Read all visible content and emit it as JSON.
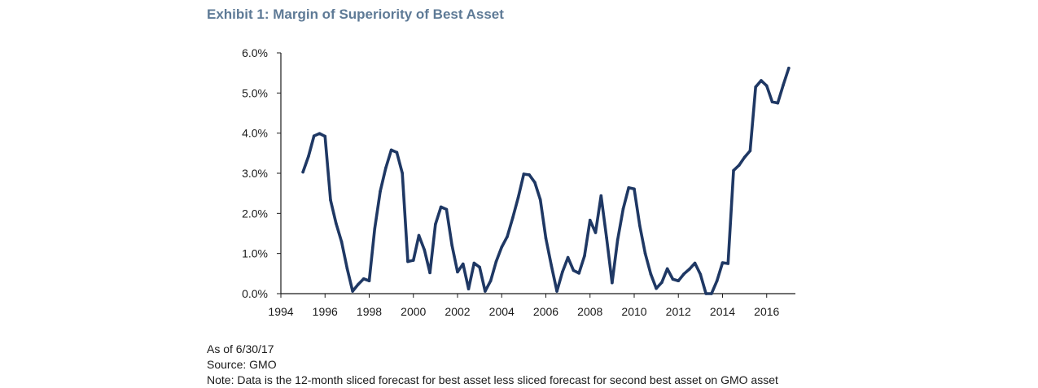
{
  "exhibit": {
    "title": "Exhibit 1: Margin of Superiority of Best Asset"
  },
  "footnotes": {
    "as_of": "As of 6/30/17",
    "source": "Source: GMO",
    "note": "Note: Data is the 12-month sliced forecast for best asset less sliced forecast for second best asset on GMO asset"
  },
  "colors": {
    "title": "#5e7a96",
    "line": "#1f3864",
    "axis": "#1a1a1a"
  },
  "chart_data": {
    "type": "line",
    "title": "Exhibit 1: Margin of Superiority of Best Asset",
    "xlabel": "",
    "ylabel": "",
    "xlim": [
      1994,
      2017.3
    ],
    "ylim": [
      0,
      6
    ],
    "x_ticks": [
      1994,
      1996,
      1998,
      2000,
      2002,
      2004,
      2006,
      2008,
      2010,
      2012,
      2014,
      2016
    ],
    "x_tick_labels": [
      "1994",
      "1996",
      "1998",
      "2000",
      "2002",
      "2004",
      "2006",
      "2008",
      "2010",
      "2012",
      "2014",
      "2016"
    ],
    "y_ticks": [
      0,
      1,
      2,
      3,
      4,
      5,
      6
    ],
    "y_tick_labels": [
      "0.0%",
      "1.0%",
      "2.0%",
      "3.0%",
      "4.0%",
      "5.0%",
      "6.0%"
    ],
    "grid": false,
    "legend": "none",
    "series": [
      {
        "x": [
          1995.0,
          1995.25,
          1995.5,
          1995.75,
          1996.0,
          1996.25,
          1996.5,
          1996.75,
          1997.0,
          1997.25,
          1997.5,
          1997.75,
          1998.0,
          1998.25,
          1998.5,
          1998.75,
          1999.0,
          1999.25,
          1999.5,
          1999.75,
          2000.0,
          2000.25,
          2000.5,
          2000.75,
          2001.0,
          2001.25,
          2001.5,
          2001.75,
          2002.0,
          2002.25,
          2002.5,
          2002.75,
          2003.0,
          2003.25,
          2003.5,
          2003.75,
          2004.0,
          2004.25,
          2004.5,
          2004.75,
          2005.0,
          2005.25,
          2005.5,
          2005.75,
          2006.0,
          2006.25,
          2006.5,
          2006.75,
          2007.0,
          2007.25,
          2007.5,
          2007.75,
          2008.0,
          2008.25,
          2008.5,
          2008.75,
          2009.0,
          2009.25,
          2009.5,
          2009.75,
          2010.0,
          2010.25,
          2010.5,
          2010.75,
          2011.0,
          2011.25,
          2011.5,
          2011.75,
          2012.0,
          2012.25,
          2012.5,
          2012.75,
          2013.0,
          2013.25,
          2013.5,
          2013.75,
          2014.0,
          2014.25,
          2014.5,
          2014.75,
          2015.0,
          2015.25,
          2015.5,
          2015.75,
          2016.0,
          2016.25,
          2016.5,
          2016.75,
          2017.0
        ],
        "values": [
          3.03,
          3.42,
          3.93,
          3.99,
          3.92,
          2.33,
          1.75,
          1.29,
          0.63,
          0.06,
          0.23,
          0.37,
          0.32,
          1.62,
          2.55,
          3.13,
          3.58,
          3.52,
          3.0,
          0.8,
          0.83,
          1.45,
          1.09,
          0.52,
          1.73,
          2.16,
          2.1,
          1.2,
          0.54,
          0.74,
          0.12,
          0.76,
          0.66,
          0.06,
          0.32,
          0.8,
          1.16,
          1.42,
          1.89,
          2.4,
          2.98,
          2.96,
          2.77,
          2.34,
          1.38,
          0.7,
          0.06,
          0.54,
          0.9,
          0.58,
          0.51,
          0.94,
          1.83,
          1.52,
          2.44,
          1.39,
          0.27,
          1.34,
          2.11,
          2.64,
          2.61,
          1.7,
          1.0,
          0.49,
          0.13,
          0.28,
          0.62,
          0.36,
          0.32,
          0.49,
          0.61,
          0.76,
          0.48,
          0.0,
          0.0,
          0.32,
          0.77,
          0.75,
          3.07,
          3.2,
          3.4,
          3.56,
          5.15,
          5.31,
          5.18,
          4.78,
          4.75,
          5.2,
          5.62
        ]
      }
    ]
  }
}
